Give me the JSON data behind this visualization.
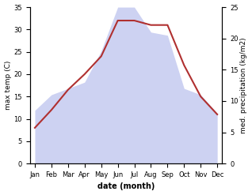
{
  "months": [
    "Jan",
    "Feb",
    "Mar",
    "Apr",
    "May",
    "Jun",
    "Jul",
    "Aug",
    "Sep",
    "Oct",
    "Nov",
    "Dec"
  ],
  "month_indices": [
    0,
    1,
    2,
    3,
    4,
    5,
    6,
    7,
    8,
    9,
    10,
    11
  ],
  "temp_max": [
    8,
    12,
    16.5,
    20,
    24,
    32,
    32,
    31,
    31,
    22,
    15,
    11
  ],
  "precipitation": [
    8.5,
    11,
    12,
    13,
    18,
    25,
    25,
    21,
    20.5,
    12,
    11,
    8
  ],
  "temp_color": "#b03030",
  "precip_fill_color": "#c5caf0",
  "precip_fill_alpha": 0.85,
  "temp_ylim": [
    0,
    35
  ],
  "precip_ylim": [
    0,
    25
  ],
  "temp_yticks": [
    0,
    5,
    10,
    15,
    20,
    25,
    30,
    35
  ],
  "precip_yticks": [
    0,
    5,
    10,
    15,
    20,
    25
  ],
  "xlabel": "date (month)",
  "ylabel_left": "max temp (C)",
  "ylabel_right": "med. precipitation (kg/m2)",
  "background_color": "#ffffff",
  "tick_fontsize": 6,
  "label_fontsize": 6.5,
  "xlabel_fontsize": 7,
  "linewidth": 1.5
}
